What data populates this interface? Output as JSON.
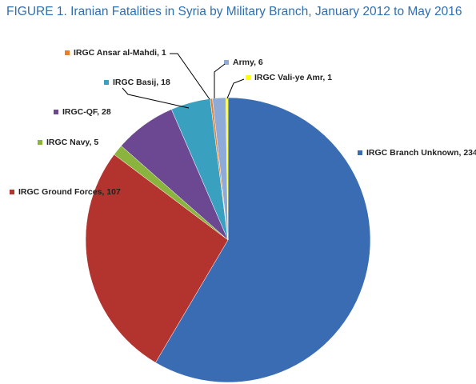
{
  "chart_data": {
    "type": "pie",
    "title": "FIGURE 1. Iranian Fatalities in Syria by Military Branch, January 2012 to May 2016",
    "values": [
      234,
      107,
      5,
      28,
      18,
      1,
      6,
      1
    ],
    "value_labels": [
      "IRGC Branch Unknown, 234",
      "IRGC Ground Forces, 107",
      "IRGC Navy, 5",
      "IRGC-QF, 28",
      "IRGC Basij, 18",
      "IRGC Ansar al-Mahdi, 1",
      "Army, 6",
      "IRGC Vali-ye Amr, 1"
    ],
    "colors": [
      "#3a6cb4",
      "#b3332f",
      "#8ab43d",
      "#6b4891",
      "#3aa0bf",
      "#e67e2b",
      "#8eaad8",
      "#ffff00"
    ]
  }
}
